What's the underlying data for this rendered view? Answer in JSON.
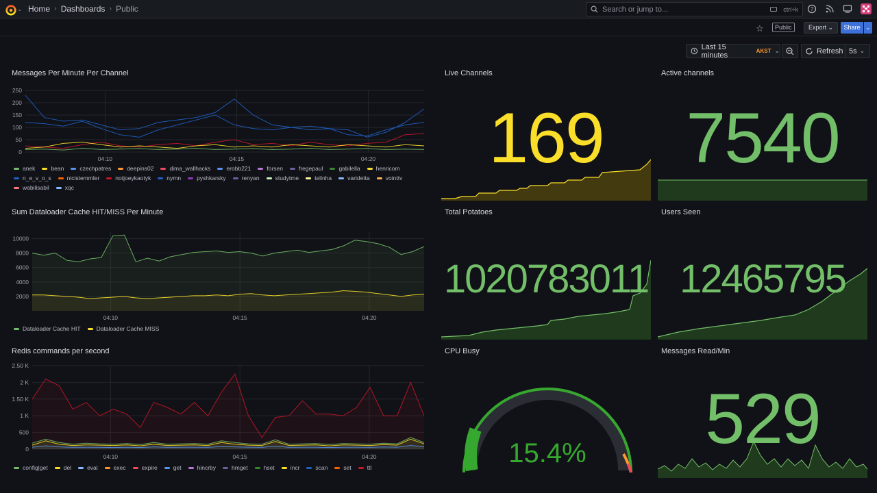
{
  "topnav": {
    "breadcrumbs": [
      "Home",
      "Dashboards",
      "Public"
    ],
    "search_placeholder": "Search or jump to...",
    "search_shortcut": "ctrl+k"
  },
  "toolbar": {
    "public_label": "Public",
    "export_label": "Export",
    "share_label": "Share"
  },
  "time_controls": {
    "range_label": "Last 15 minutes",
    "timezone": "AKST",
    "refresh_label": "Refresh",
    "interval": "5s"
  },
  "colors": {
    "green": "#73bf69",
    "yellow": "#fade2a",
    "blue": "#5794f2",
    "red": "#f2495c",
    "orange": "#ff9830",
    "purple": "#b877d9"
  },
  "panels": {
    "messages_per_minute": {
      "title": "Messages Per Minute Per Channel",
      "legend": [
        {
          "name": "anek",
          "color": "#73bf69"
        },
        {
          "name": "bean",
          "color": "#fade2a"
        },
        {
          "name": "czechpatres",
          "color": "#5794f2"
        },
        {
          "name": "deepins02",
          "color": "#ff9830"
        },
        {
          "name": "dima_wallhacks",
          "color": "#f2495c"
        },
        {
          "name": "erobb221",
          "color": "#5794f2"
        },
        {
          "name": "forsen",
          "color": "#b877d9"
        },
        {
          "name": "fregepaul",
          "color": "#705da0"
        },
        {
          "name": "gabilella",
          "color": "#37872d"
        },
        {
          "name": "henricom",
          "color": "#fade2a"
        },
        {
          "name": "n_e_v_o_s",
          "color": "#1f60c4"
        },
        {
          "name": "nicistemmler",
          "color": "#fa6400"
        },
        {
          "name": "notjoeykaotyk",
          "color": "#c4162a"
        },
        {
          "name": "nymn",
          "color": "#1f60c4"
        },
        {
          "name": "pyshkarsky",
          "color": "#8f3bb8"
        },
        {
          "name": "renyan",
          "color": "#705da0"
        },
        {
          "name": "studytme",
          "color": "#c8f2c2"
        },
        {
          "name": "telinha",
          "color": "#fff899"
        },
        {
          "name": "varidetta",
          "color": "#8ab8ff"
        },
        {
          "name": "vointtv",
          "color": "#ffb357"
        },
        {
          "name": "wabilisabil",
          "color": "#ff7383"
        },
        {
          "name": "xqc",
          "color": "#8ab8ff"
        }
      ]
    },
    "dataloader_cache": {
      "title": "Sum Dataloader Cache HIT/MISS Per Minute",
      "legend": [
        {
          "name": "Dataloader Cache HIT",
          "color": "#73bf69"
        },
        {
          "name": "Dataloader Cache MISS",
          "color": "#fade2a"
        }
      ]
    },
    "redis_commands": {
      "title": "Redis commands per second",
      "legend": [
        {
          "name": "config|get",
          "color": "#73bf69"
        },
        {
          "name": "del",
          "color": "#fade2a"
        },
        {
          "name": "eval",
          "color": "#8ab8ff"
        },
        {
          "name": "exec",
          "color": "#ff9830"
        },
        {
          "name": "expire",
          "color": "#f2495c"
        },
        {
          "name": "get",
          "color": "#5794f2"
        },
        {
          "name": "hincrby",
          "color": "#b877d9"
        },
        {
          "name": "hmget",
          "color": "#705da0"
        },
        {
          "name": "hset",
          "color": "#37872d"
        },
        {
          "name": "incr",
          "color": "#fade2a"
        },
        {
          "name": "scan",
          "color": "#1f60c4"
        },
        {
          "name": "set",
          "color": "#fa6400"
        },
        {
          "name": "ttl",
          "color": "#c4162a"
        }
      ]
    },
    "live_channels": {
      "title": "Live Channels",
      "value": "169",
      "color": "#fade2a"
    },
    "active_channels": {
      "title": "Active channels",
      "value": "7540",
      "color": "#73bf69"
    },
    "total_potatoes": {
      "title": "Total Potatoes",
      "value": "1020783011",
      "color": "#73bf69"
    },
    "users_seen": {
      "title": "Users Seen",
      "value": "12465795",
      "color": "#73bf69"
    },
    "cpu_busy": {
      "title": "CPU Busy",
      "value": "15.4%",
      "percent": 15.4,
      "color": "#37a82f"
    },
    "messages_read": {
      "title": "Messages Read/Min",
      "value": "529",
      "color": "#73bf69"
    }
  },
  "chart_data": [
    {
      "type": "line",
      "title": "Messages Per Minute Per Channel",
      "ylim": [
        0,
        250
      ],
      "y_ticks": [
        "250",
        "200",
        "150",
        "100",
        "50",
        "0"
      ],
      "x_ticks": [
        "04:10",
        "04:15",
        "04:20"
      ],
      "series": [
        {
          "name": "nymn",
          "values": [
            230,
            140,
            125,
            130,
            110,
            90,
            95,
            120,
            130,
            140,
            160,
            215,
            150,
            110,
            100,
            90,
            95,
            90,
            60,
            80,
            120,
            175
          ]
        },
        {
          "name": "n_e_v_o_s",
          "values": [
            120,
            115,
            105,
            125,
            95,
            70,
            60,
            90,
            110,
            130,
            150,
            110,
            95,
            90,
            100,
            105,
            95,
            70,
            65,
            90,
            110,
            120
          ]
        },
        {
          "name": "notjoeykaotyk",
          "values": [
            25,
            20,
            15,
            30,
            40,
            25,
            20,
            30,
            35,
            25,
            40,
            50,
            30,
            35,
            25,
            40,
            30,
            25,
            35,
            40,
            70,
            75
          ]
        },
        {
          "name": "bean",
          "values": [
            15,
            20,
            35,
            40,
            30,
            20,
            25,
            20,
            15,
            25,
            30,
            20,
            25,
            20,
            30,
            25,
            20,
            30,
            25,
            20,
            30,
            25
          ]
        },
        {
          "name": "anek",
          "values": [
            10,
            12,
            8,
            15,
            10,
            12,
            14,
            10,
            12,
            15,
            10,
            12,
            14,
            10,
            12,
            15,
            10,
            12,
            14,
            10,
            12,
            10
          ]
        }
      ]
    },
    {
      "type": "line",
      "title": "Sum Dataloader Cache HIT/MISS Per Minute",
      "y_ticks": [
        "10000",
        "8000",
        "6000",
        "4000",
        "2000"
      ],
      "x_ticks": [
        "04:10",
        "04:15",
        "04:20"
      ],
      "series": [
        {
          "name": "Dataloader Cache HIT",
          "values": [
            8000,
            7700,
            8000,
            7000,
            6800,
            7200,
            7400,
            10400,
            10500,
            6800,
            7300,
            6900,
            7500,
            7800,
            8100,
            8200,
            8300,
            8100,
            8200,
            8000,
            7600,
            8000,
            8200,
            8400,
            8100,
            8300,
            8500,
            9000,
            9800,
            9600,
            9300,
            8800,
            7800,
            8200,
            8900
          ]
        },
        {
          "name": "Dataloader Cache MISS",
          "values": [
            2200,
            2200,
            2100,
            2000,
            1900,
            1700,
            1800,
            1900,
            2000,
            1800,
            1700,
            1800,
            1900,
            2000,
            2100,
            2100,
            2200,
            2100,
            2300,
            2400,
            2200,
            2100,
            2200,
            2300,
            2400,
            2500,
            2600,
            2800,
            2700,
            2600,
            2400,
            2200,
            2000,
            2200,
            2300
          ]
        }
      ]
    },
    {
      "type": "area",
      "title": "Redis commands per second",
      "y_ticks": [
        "2.50 K",
        "2 K",
        "1.50 K",
        "1 K",
        "500",
        "0"
      ],
      "x_ticks": [
        "04:10",
        "04:15",
        "04:20"
      ],
      "series": [
        {
          "name": "ttl",
          "values": [
            1500,
            2100,
            1900,
            1200,
            1400,
            1000,
            1200,
            1050,
            650,
            1400,
            1250,
            1050,
            1400,
            1000,
            1700,
            2250,
            1000,
            350,
            950,
            1000,
            1450,
            1050,
            1050,
            1000,
            1250,
            1850,
            1000,
            1000,
            2000,
            1000
          ]
        },
        {
          "name": "config|get",
          "values": [
            180,
            300,
            200,
            150,
            180,
            160,
            150,
            170,
            140,
            200,
            150,
            160,
            170,
            150,
            250,
            200,
            160,
            150,
            280,
            150,
            160,
            170,
            140,
            170,
            160,
            150,
            180,
            160,
            350,
            200
          ]
        },
        {
          "name": "del",
          "values": [
            120,
            250,
            150,
            110,
            130,
            120,
            110,
            130,
            100,
            150,
            110,
            120,
            130,
            110,
            200,
            150,
            120,
            110,
            230,
            110,
            120,
            130,
            100,
            130,
            120,
            110,
            140,
            120,
            300,
            160
          ]
        },
        {
          "name": "get",
          "values": [
            60,
            100,
            70,
            55,
            60,
            55,
            50,
            60,
            50,
            70,
            55,
            60,
            60,
            55,
            80,
            70,
            60,
            55,
            90,
            55,
            60,
            60,
            50,
            60,
            60,
            55,
            65,
            60,
            110,
            70
          ]
        }
      ]
    }
  ]
}
